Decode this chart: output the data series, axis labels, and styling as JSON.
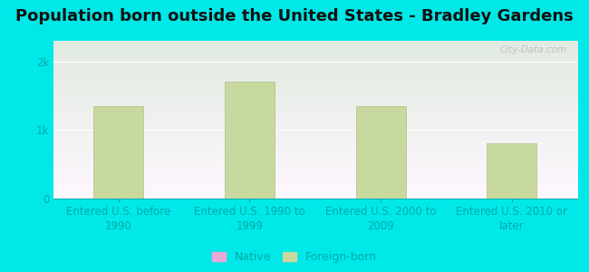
{
  "title": "Population born outside the United States - Bradley Gardens",
  "categories": [
    "Entered U.S. before\n1990",
    "Entered U.S. 1990 to\n1999",
    "Entered U.S. 2000 to\n2009",
    "Entered U.S. 2010 or\nlater"
  ],
  "foreign_born_values": [
    1350,
    1700,
    1350,
    800
  ],
  "bar_color": "#c8d9a0",
  "bar_edge_color": "#b0c080",
  "background_color": "#00e8e8",
  "yticks": [
    0,
    1000,
    2000
  ],
  "ytick_labels": [
    "0",
    "1k",
    "2k"
  ],
  "ylim": [
    0,
    2300
  ],
  "title_fontsize": 13,
  "tick_fontsize": 8.5,
  "label_fontsize": 8.5,
  "native_color": "#e8a8d8",
  "foreign_born_legend_color": "#c8d9a0",
  "legend_native_label": "Native",
  "legend_foreign_label": "Foreign-born",
  "watermark_text": "City-Data.com",
  "grid_color": "#ffffff",
  "tick_color": "#00aaaa",
  "label_color": "#00aaaa"
}
